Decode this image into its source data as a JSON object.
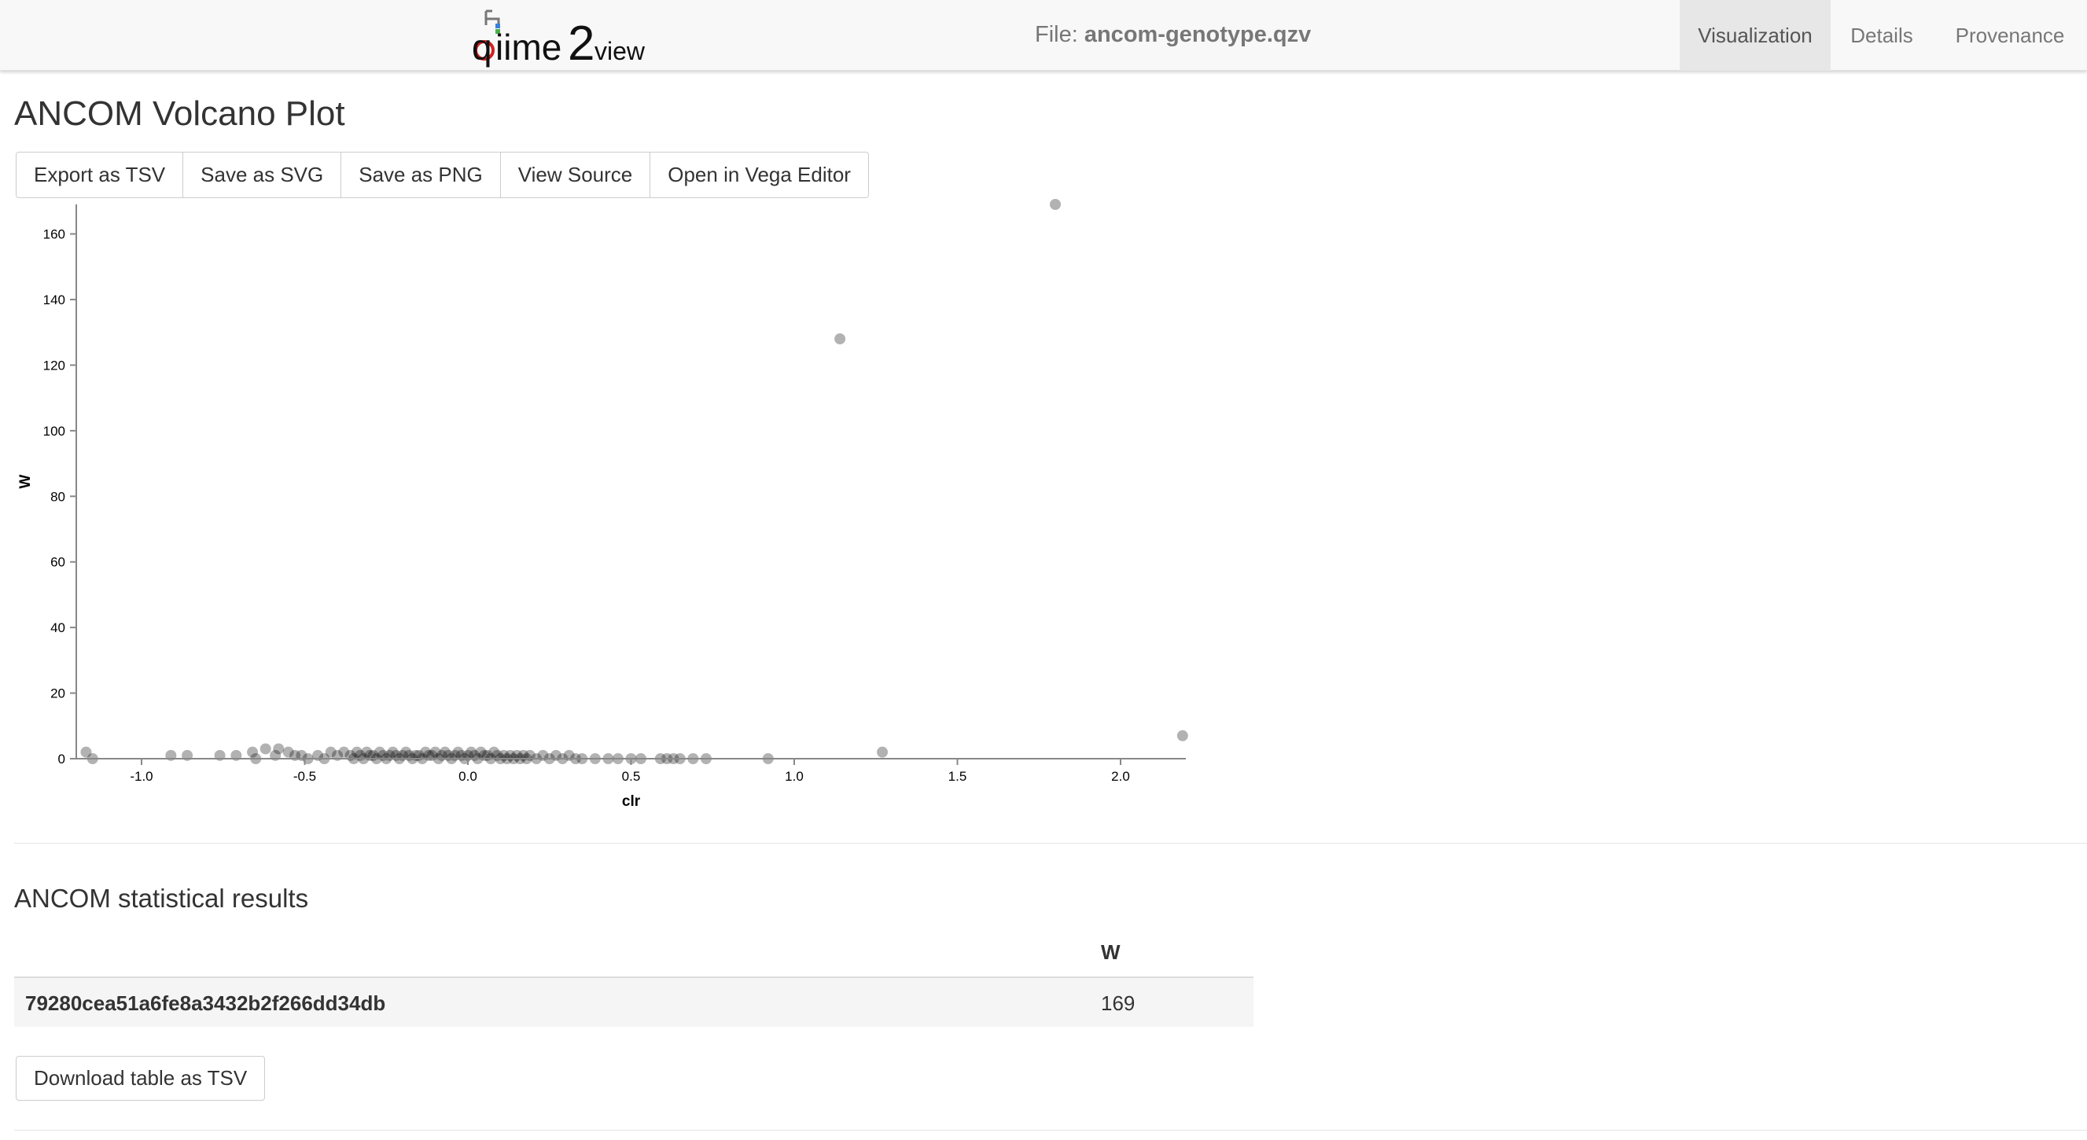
{
  "header": {
    "logo_text": "qiime2view",
    "file_prefix": "File: ",
    "file_name": "ancom-genotype.qzv",
    "tabs": [
      {
        "label": "Visualization",
        "active": true
      },
      {
        "label": "Details",
        "active": false
      },
      {
        "label": "Provenance",
        "active": false
      }
    ]
  },
  "page_title": "ANCOM Volcano Plot",
  "actions": {
    "export_tsv": "Export as TSV",
    "save_svg": "Save as SVG",
    "save_png": "Save as PNG",
    "view_source": "View Source",
    "open_vega": "Open in Vega Editor"
  },
  "chart_data": {
    "type": "scatter",
    "xlabel": "clr",
    "ylabel": "W",
    "xlim": [
      -1.2,
      2.2
    ],
    "ylim": [
      0,
      169
    ],
    "xticks": [
      -1.0,
      -0.5,
      0.0,
      0.5,
      1.0,
      1.5,
      2.0
    ],
    "xtick_labels": [
      "-1.0",
      "-0.5",
      "0.0",
      "0.5",
      "1.0",
      "1.5",
      "2.0"
    ],
    "yticks": [
      0,
      20,
      40,
      60,
      80,
      100,
      120,
      140,
      160
    ],
    "ytick_labels": [
      "0",
      "20",
      "40",
      "60",
      "80",
      "100",
      "120",
      "140",
      "160"
    ],
    "grid": false,
    "point_color": "#000000",
    "point_opacity": 0.3,
    "points": [
      [
        1.8,
        169
      ],
      [
        1.14,
        128
      ],
      [
        2.19,
        7
      ],
      [
        1.27,
        2
      ],
      [
        0.92,
        0
      ],
      [
        -1.17,
        2
      ],
      [
        -1.15,
        0
      ],
      [
        -0.91,
        1
      ],
      [
        -0.86,
        1
      ],
      [
        -0.76,
        1
      ],
      [
        -0.71,
        1
      ],
      [
        -0.66,
        2
      ],
      [
        -0.65,
        0
      ],
      [
        -0.62,
        3
      ],
      [
        -0.59,
        1
      ],
      [
        -0.58,
        3
      ],
      [
        -0.55,
        2
      ],
      [
        -0.53,
        1
      ],
      [
        -0.51,
        1
      ],
      [
        -0.49,
        0
      ],
      [
        -0.46,
        1
      ],
      [
        -0.44,
        0
      ],
      [
        -0.42,
        2
      ],
      [
        -0.4,
        1
      ],
      [
        -0.38,
        2
      ],
      [
        -0.36,
        1
      ],
      [
        -0.35,
        0
      ],
      [
        -0.34,
        2
      ],
      [
        -0.33,
        1
      ],
      [
        -0.32,
        0
      ],
      [
        -0.31,
        2
      ],
      [
        -0.3,
        1
      ],
      [
        -0.29,
        1
      ],
      [
        -0.28,
        0
      ],
      [
        -0.27,
        2
      ],
      [
        -0.26,
        1
      ],
      [
        -0.25,
        0
      ],
      [
        -0.24,
        1
      ],
      [
        -0.23,
        2
      ],
      [
        -0.22,
        1
      ],
      [
        -0.21,
        0
      ],
      [
        -0.2,
        1
      ],
      [
        -0.19,
        2
      ],
      [
        -0.18,
        1
      ],
      [
        -0.17,
        0
      ],
      [
        -0.16,
        1
      ],
      [
        -0.15,
        1
      ],
      [
        -0.14,
        0
      ],
      [
        -0.13,
        2
      ],
      [
        -0.12,
        1
      ],
      [
        -0.11,
        1
      ],
      [
        -0.1,
        2
      ],
      [
        -0.09,
        0
      ],
      [
        -0.08,
        1
      ],
      [
        -0.07,
        2
      ],
      [
        -0.06,
        1
      ],
      [
        -0.05,
        0
      ],
      [
        -0.04,
        1
      ],
      [
        -0.03,
        2
      ],
      [
        -0.02,
        1
      ],
      [
        -0.01,
        0
      ],
      [
        0.0,
        1
      ],
      [
        0.01,
        2
      ],
      [
        0.02,
        1
      ],
      [
        0.03,
        0
      ],
      [
        0.04,
        2
      ],
      [
        0.05,
        1
      ],
      [
        0.06,
        1
      ],
      [
        0.07,
        0
      ],
      [
        0.08,
        2
      ],
      [
        0.09,
        1
      ],
      [
        0.1,
        0
      ],
      [
        0.11,
        1
      ],
      [
        0.12,
        0
      ],
      [
        0.13,
        1
      ],
      [
        0.14,
        0
      ],
      [
        0.15,
        1
      ],
      [
        0.16,
        0
      ],
      [
        0.17,
        1
      ],
      [
        0.18,
        0
      ],
      [
        0.19,
        1
      ],
      [
        0.21,
        0
      ],
      [
        0.23,
        1
      ],
      [
        0.25,
        0
      ],
      [
        0.27,
        1
      ],
      [
        0.29,
        0
      ],
      [
        0.31,
        1
      ],
      [
        0.33,
        0
      ],
      [
        0.35,
        0
      ],
      [
        0.39,
        0
      ],
      [
        0.43,
        0
      ],
      [
        0.46,
        0
      ],
      [
        0.5,
        0
      ],
      [
        0.53,
        0
      ],
      [
        0.59,
        0
      ],
      [
        0.61,
        0
      ],
      [
        0.63,
        0
      ],
      [
        0.65,
        0
      ],
      [
        0.69,
        0
      ],
      [
        0.73,
        0
      ]
    ]
  },
  "results": {
    "title": "ANCOM statistical results",
    "column_w": "W",
    "rows": [
      {
        "id": "79280cea51a6fe8a3432b2f266dd34db",
        "w": "169"
      }
    ],
    "download_label": "Download table as TSV"
  }
}
